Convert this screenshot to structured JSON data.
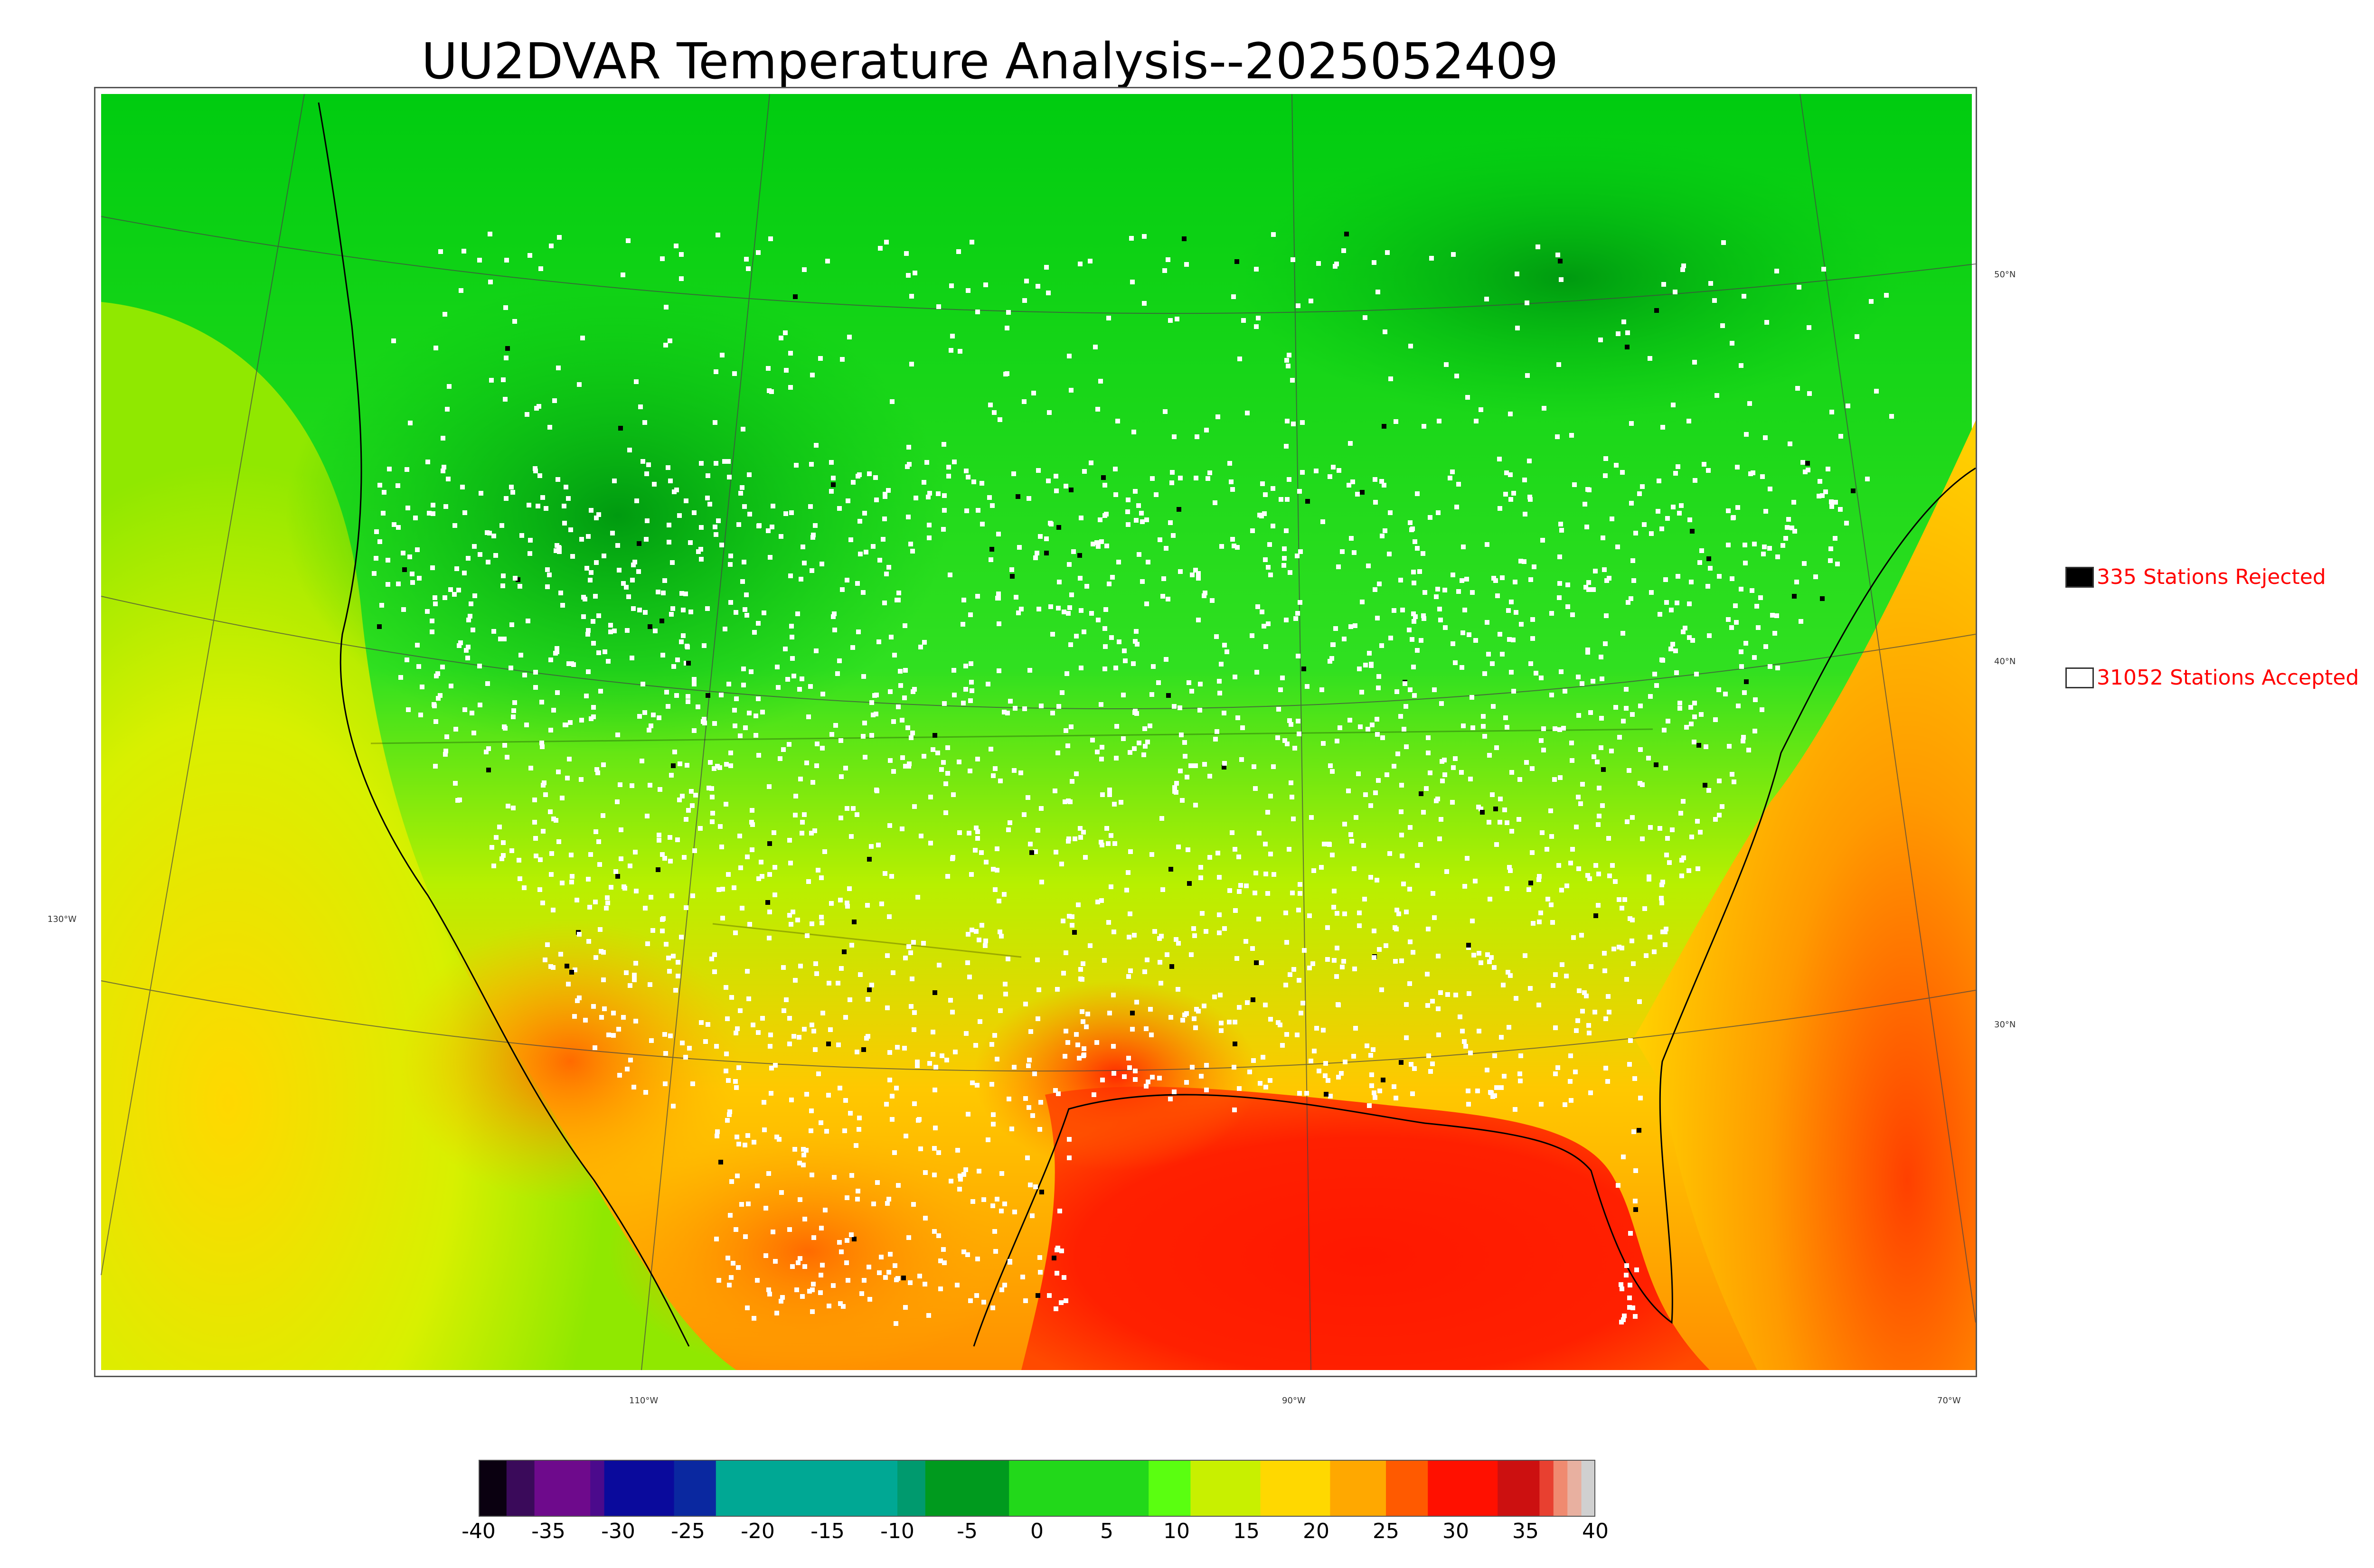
{
  "title": "UU2DVAR Temperature Analysis--2025052409",
  "legend": {
    "rejected_label": "335 Stations Rejected",
    "accepted_label": "31052 Stations Accepted",
    "rejected_color": "#000000",
    "accepted_color": "#ffffff"
  },
  "lat_labels": [
    "50°N",
    "40°N",
    "30°N"
  ],
  "lon_labels": [
    "130°W",
    "110°W",
    "90°W",
    "70°W"
  ],
  "colorbar": {
    "ticks": [
      "-40",
      "-35",
      "-30",
      "-25",
      "-20",
      "-15",
      "-10",
      "-5",
      "0",
      "5",
      "10",
      "15",
      "20",
      "25",
      "30",
      "35",
      "40"
    ],
    "range": [
      -40,
      40
    ],
    "segments": [
      {
        "from": -40,
        "to": -38,
        "color": "#0a0010"
      },
      {
        "from": -38,
        "to": -36,
        "color": "#3a0a5a"
      },
      {
        "from": -36,
        "to": -32,
        "color": "#6e0a8c"
      },
      {
        "from": -32,
        "to": -31,
        "color": "#4b0a8c"
      },
      {
        "from": -31,
        "to": -26,
        "color": "#0a0a9c"
      },
      {
        "from": -26,
        "to": -23,
        "color": "#0a28a0"
      },
      {
        "from": -23,
        "to": -10,
        "color": "#00a894"
      },
      {
        "from": -10,
        "to": -8,
        "color": "#009a6e"
      },
      {
        "from": -8,
        "to": -2,
        "color": "#009a1e"
      },
      {
        "from": -2,
        "to": 8,
        "color": "#22d81a"
      },
      {
        "from": 8,
        "to": 11,
        "color": "#5aff10"
      },
      {
        "from": 11,
        "to": 16,
        "color": "#c8f000"
      },
      {
        "from": 16,
        "to": 21,
        "color": "#ffd800"
      },
      {
        "from": 21,
        "to": 25,
        "color": "#ffa800"
      },
      {
        "from": 25,
        "to": 28,
        "color": "#ff5a00"
      },
      {
        "from": 28,
        "to": 33,
        "color": "#ff1000"
      },
      {
        "from": 33,
        "to": 36,
        "color": "#cc1010"
      },
      {
        "from": 36,
        "to": 37,
        "color": "#e84030"
      },
      {
        "from": 37,
        "to": 38,
        "color": "#f08a70"
      },
      {
        "from": 38,
        "to": 39,
        "color": "#e8b0a0"
      },
      {
        "from": 39,
        "to": 40,
        "color": "#d0d0d0"
      }
    ]
  },
  "colors": {
    "ocean_north_green": "#00d020",
    "ocean_west_yellow": "#c8f000",
    "ocean_east_orange": "#ffa000",
    "gulf_red": "#ff2000",
    "land_green": "#10c010",
    "land_desert_orange": "#ff8a00",
    "coast_line": "#000000",
    "graticule": "#444444"
  }
}
